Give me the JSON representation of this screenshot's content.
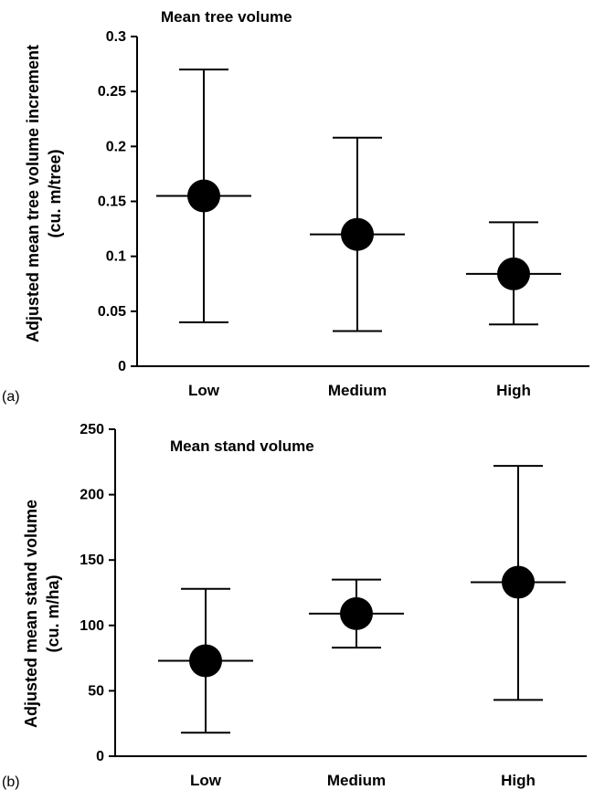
{
  "chart_data": [
    {
      "type": "scatter",
      "panel_label": "(a)",
      "title": "Mean tree volume",
      "ylabel_line1": "Adjusted mean tree volume increment",
      "ylabel_line2": "(cu. m/tree)",
      "categories": [
        "Low",
        "Medium",
        "High"
      ],
      "values": [
        0.155,
        0.12,
        0.084
      ],
      "upper": [
        0.27,
        0.208,
        0.131
      ],
      "lower": [
        0.04,
        0.032,
        0.038
      ],
      "ylim": [
        0,
        0.3
      ],
      "yticks": [
        0,
        0.05,
        0.1,
        0.15,
        0.2,
        0.25,
        0.3
      ],
      "ytick_labels": [
        "0",
        "0.05",
        "0.1",
        "0.15",
        "0.2",
        "0.25",
        "0.3"
      ],
      "grid": false
    },
    {
      "type": "scatter",
      "panel_label": "(b)",
      "title": "Mean stand volume",
      "ylabel_line1": "Adjusted mean stand volume",
      "ylabel_line2": "(cu. m/ha)",
      "categories": [
        "Low",
        "Medium",
        "High"
      ],
      "values": [
        73,
        109,
        133
      ],
      "upper": [
        128,
        135,
        222
      ],
      "lower": [
        18,
        83,
        43
      ],
      "ylim": [
        0,
        250
      ],
      "yticks": [
        0,
        50,
        100,
        150,
        200,
        250
      ],
      "ytick_labels": [
        "0",
        "50",
        "100",
        "150",
        "200",
        "250"
      ],
      "grid": false
    }
  ]
}
